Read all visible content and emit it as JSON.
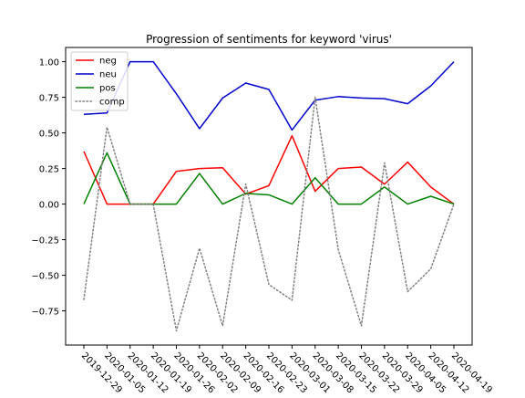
{
  "chart_data": {
    "type": "line",
    "title": "Progression of sentiments for keyword 'virus'",
    "xlabel": "",
    "ylabel": "",
    "categories": [
      "2019-12-29",
      "2020-01-05",
      "2020-01-12",
      "2020-01-19",
      "2020-01-26",
      "2020-02-02",
      "2020-02-09",
      "2020-02-16",
      "2020-02-23",
      "2020-03-01",
      "2020-03-08",
      "2020-03-15",
      "2020-03-22",
      "2020-03-29",
      "2020-04-05",
      "2020-04-12",
      "2020-04-19"
    ],
    "yticks": [
      -0.75,
      -0.5,
      -0.25,
      0.0,
      0.25,
      0.5,
      0.75,
      1.0
    ],
    "ytick_labels": [
      "−0.75",
      "−0.50",
      "−0.25",
      "0.00",
      "0.25",
      "0.50",
      "0.75",
      "1.00"
    ],
    "ylim": [
      -0.99,
      1.1
    ],
    "grid": false,
    "legend_position": "top-left",
    "series": [
      {
        "name": "neg",
        "color": "#ff0000",
        "dash": "solid",
        "values": [
          0.37,
          0.0,
          0.0,
          0.0,
          0.23,
          0.25,
          0.255,
          0.07,
          0.13,
          0.48,
          0.09,
          0.25,
          0.26,
          0.14,
          0.295,
          0.12,
          0.0
        ]
      },
      {
        "name": "neu",
        "color": "#0000cc",
        "dash": "solid",
        "values": [
          0.63,
          0.64,
          1.0,
          1.0,
          0.775,
          0.53,
          0.745,
          0.85,
          0.805,
          0.52,
          0.73,
          0.755,
          0.745,
          0.74,
          0.705,
          0.83,
          1.0
        ]
      },
      {
        "name": "pos",
        "color": "#008000",
        "dash": "solid",
        "values": [
          0.0,
          0.36,
          0.0,
          0.0,
          0.0,
          0.215,
          0.0,
          0.075,
          0.065,
          0.0,
          0.185,
          0.0,
          0.0,
          0.12,
          0.0,
          0.055,
          0.0
        ]
      },
      {
        "name": "comp",
        "color": "#808080",
        "dash": "dotted",
        "values": [
          -0.67,
          0.54,
          0.0,
          0.0,
          -0.89,
          -0.31,
          -0.855,
          0.14,
          -0.565,
          -0.675,
          0.75,
          -0.32,
          -0.855,
          0.29,
          -0.615,
          -0.455,
          0.0
        ]
      }
    ]
  }
}
